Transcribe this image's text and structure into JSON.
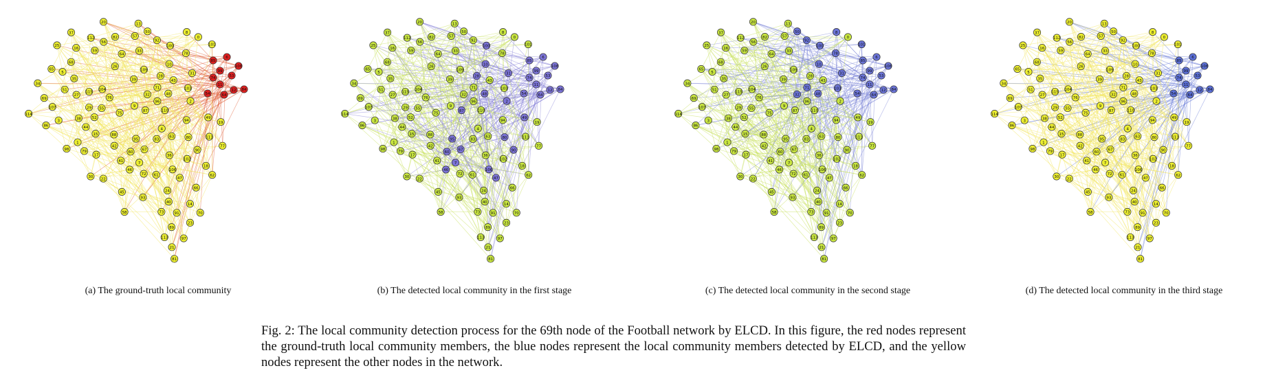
{
  "figure": {
    "panels": [
      {
        "label": "(a) The ground-truth local community",
        "highlight_color": "#dd2020",
        "base_color": "#ecee30",
        "community_edge": "#e0603a",
        "base_edge": "#f2e65c"
      },
      {
        "label": "(b) The detected local community in the first stage",
        "highlight_color": "#7b73d6",
        "base_color": "#c9e640",
        "community_edge": "#8b85d8",
        "base_edge": "#c6e05a"
      },
      {
        "label": "(c) The detected local community in the second stage",
        "highlight_color": "#6b74d8",
        "base_color": "#c9e640",
        "community_edge": "#8088d8",
        "base_edge": "#c6e05a"
      },
      {
        "label": "(d) The detected local community in the third stage",
        "highlight_color": "#5b6fd6",
        "base_color": "#ecee30",
        "community_edge": "#6d80d8",
        "base_edge": "#f2e65c"
      }
    ],
    "caption": "Fig. 2: The local community detection process for the 69th node of the Football network by ELCD. In this figure, the red nodes represent the ground-truth local community members, the blue nodes represent the local community members detected by ELCD, and the yellow nodes represent the other nodes in the network.",
    "node_labels": [
      "85",
      "6",
      "108",
      "99",
      "53",
      "84",
      "12",
      "11",
      "54",
      "64",
      "74",
      "41",
      "91",
      "68",
      "75",
      "78",
      "98",
      "25",
      "50",
      "5",
      "47",
      "4",
      "80",
      "115",
      "42",
      "109",
      "70",
      "103",
      "73",
      "111",
      "51",
      "24",
      "89",
      "76",
      "49",
      "113",
      "10",
      "69",
      "67",
      "58",
      "17",
      "22",
      "112",
      "97",
      "114",
      "88",
      "87",
      "94",
      "52",
      "57",
      "21",
      "92",
      "1",
      "83",
      "3",
      "66",
      "77",
      "96",
      "60",
      "59",
      "65",
      "16",
      "48",
      "18",
      "45",
      "93",
      "64b",
      "61",
      "107",
      "33",
      "28",
      "71",
      "26",
      "14",
      "7",
      "63",
      "81",
      "104",
      "31",
      "102",
      "40",
      "101",
      "2",
      "38",
      "34",
      "37",
      "90",
      "36",
      "27",
      "39",
      "46",
      "110",
      "30",
      "62",
      "95",
      "72",
      "106",
      "43",
      "20",
      "13",
      "15",
      "44",
      "86",
      "56",
      "100",
      "19",
      "35",
      "32",
      "55",
      "9",
      "79",
      "8",
      "23",
      "29",
      "82",
      "0"
    ]
  }
}
